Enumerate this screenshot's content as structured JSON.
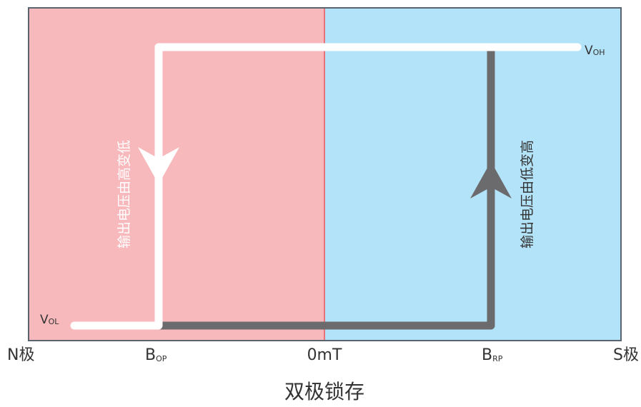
{
  "title": "双极锁存",
  "x_axis": {
    "labels": [
      {
        "id": "n-pole",
        "main": "N极",
        "sub": ""
      },
      {
        "id": "bop",
        "main": "B",
        "sub": "OP"
      },
      {
        "id": "zero",
        "main": "0mT",
        "sub": ""
      },
      {
        "id": "brp",
        "main": "B",
        "sub": "RP"
      },
      {
        "id": "s-pole",
        "main": "S极",
        "sub": ""
      }
    ]
  },
  "levels": {
    "voh": {
      "main": "V",
      "sub": "OH"
    },
    "vol": {
      "main": "V",
      "sub": "OL"
    }
  },
  "annotations": {
    "falling": "输出电压由高变低",
    "rising": "输出电压由低变高"
  },
  "colors": {
    "n_region": "#f8b9bc",
    "s_region": "#b3e3f8",
    "frame": "#5a6470",
    "center_line": "#e8747a",
    "white_path": "#ffffff",
    "gray_path": "#6b6b6d",
    "text": "#333333"
  }
}
